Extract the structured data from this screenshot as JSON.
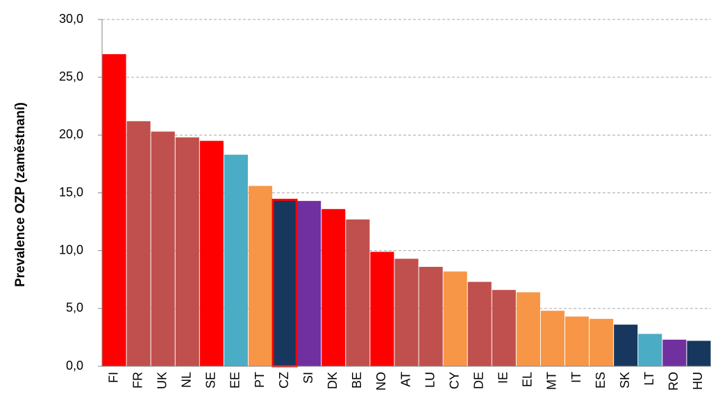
{
  "chart_data": {
    "type": "bar",
    "ylabel": "Prevalence OZP (zaměstnaní)",
    "categories": [
      "FI",
      "FR",
      "UK",
      "NL",
      "SE",
      "EE",
      "PT",
      "CZ",
      "SI",
      "DK",
      "BE",
      "NO",
      "AT",
      "LU",
      "CY",
      "DE",
      "IE",
      "EL",
      "MT",
      "IT",
      "ES",
      "SK",
      "LT",
      "RO",
      "HU"
    ],
    "values": [
      27.0,
      21.2,
      20.3,
      19.8,
      19.5,
      18.3,
      15.6,
      14.4,
      14.3,
      13.6,
      12.7,
      9.9,
      9.3,
      8.6,
      8.2,
      7.3,
      6.6,
      6.4,
      4.8,
      4.3,
      4.1,
      3.6,
      2.8,
      2.3,
      2.2
    ],
    "colors": [
      "#ff0000",
      "#c0504d",
      "#c0504d",
      "#c0504d",
      "#ff0000",
      "#4bacc6",
      "#f79646",
      "#17375e",
      "#7030a0",
      "#ff0000",
      "#c0504d",
      "#ff0000",
      "#c0504d",
      "#c0504d",
      "#f79646",
      "#c0504d",
      "#c0504d",
      "#f79646",
      "#f79646",
      "#f79646",
      "#f79646",
      "#17375e",
      "#4bacc6",
      "#7030a0",
      "#17375e"
    ],
    "highlight": {
      "category": "CZ",
      "color": "#ff0000"
    },
    "ylim": [
      0,
      30
    ],
    "yticks": [
      {
        "value": 0,
        "label": "0,0"
      },
      {
        "value": 5,
        "label": "5,0"
      },
      {
        "value": 10,
        "label": "10,0"
      },
      {
        "value": 15,
        "label": "15,0"
      },
      {
        "value": 20,
        "label": "20,0"
      },
      {
        "value": 25,
        "label": "25,0"
      },
      {
        "value": 30,
        "label": "30,0"
      }
    ],
    "grid": true
  }
}
